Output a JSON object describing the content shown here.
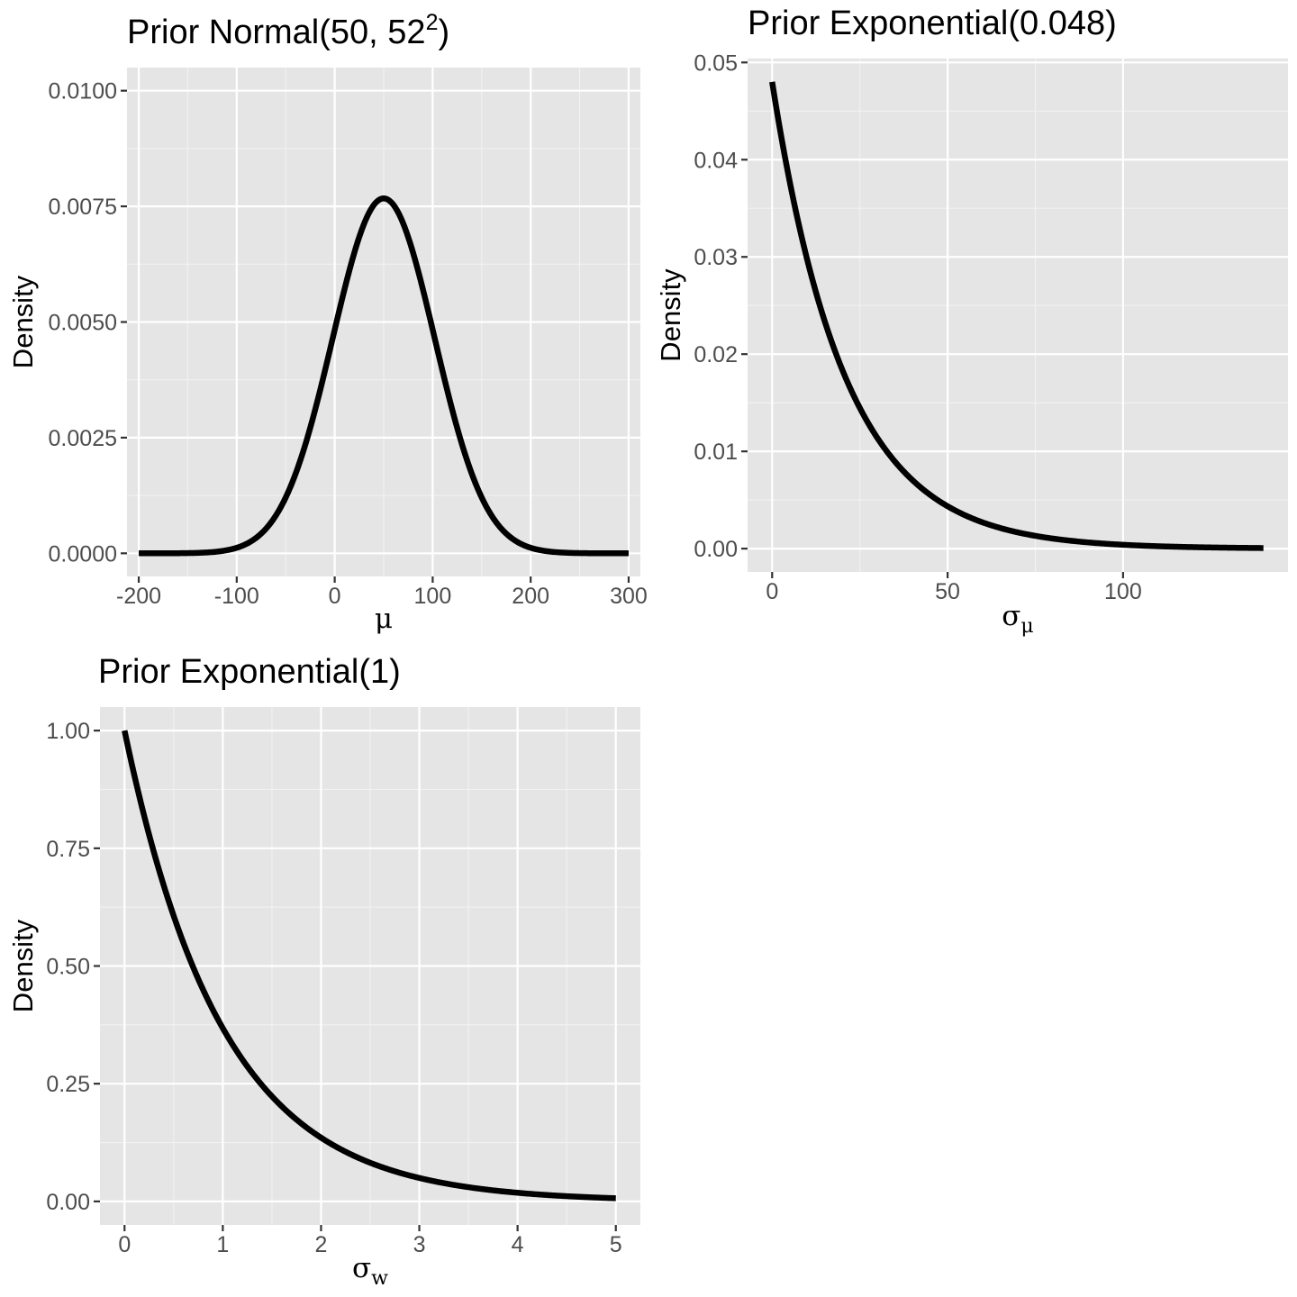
{
  "chart_data": [
    {
      "id": "p1",
      "type": "line",
      "distribution": "normal",
      "params": {
        "mean": 50,
        "sd": 52
      },
      "title": {
        "text": "Prior Normal(50, 52",
        "superscript": "2",
        "suffix": ")"
      },
      "xlabel": {
        "symbol": "μ",
        "subscript": ""
      },
      "ylabel": "Density",
      "xlim": [
        -212,
        312
      ],
      "ylim": [
        -0.0005,
        0.0105
      ],
      "xticks": [
        -200,
        -100,
        0,
        100,
        200,
        300
      ],
      "xtick_labels": [
        "-200",
        "-100",
        "0",
        "100",
        "200",
        "300"
      ],
      "yticks": [
        0,
        0.0025,
        0.005,
        0.0075,
        0.01
      ],
      "ytick_labels": [
        "0.0000",
        "0.0025",
        "0.0050",
        "0.0075",
        "0.0100"
      ],
      "x_range": [
        -200,
        300
      ],
      "series": [
        {
          "name": "Normal(50, 52^2) density",
          "x_from": -200,
          "x_to": 300,
          "peak": [
            50,
            0.00767
          ]
        }
      ],
      "grid": true
    },
    {
      "id": "p2",
      "type": "line",
      "distribution": "exponential",
      "params": {
        "rate": 0.048
      },
      "title": {
        "text": "Prior Exponential(0.048)",
        "superscript": "",
        "suffix": ""
      },
      "xlabel": {
        "symbol": "σ",
        "subscript": "μ"
      },
      "ylabel": "Density",
      "xlim": [
        -7,
        147
      ],
      "ylim": [
        -0.0024,
        0.0504
      ],
      "xticks": [
        0,
        50,
        100
      ],
      "xtick_labels": [
        "0",
        "50",
        "100"
      ],
      "yticks": [
        0,
        0.01,
        0.02,
        0.03,
        0.04,
        0.05
      ],
      "ytick_labels": [
        "0.00",
        "0.01",
        "0.02",
        "0.03",
        "0.04",
        "0.05"
      ],
      "x_range": [
        0,
        140
      ],
      "series": [
        {
          "name": "Exponential(0.048) density",
          "x_from": 0,
          "x_to": 140,
          "start": [
            0,
            0.048
          ],
          "end": [
            140,
            6e-05
          ]
        }
      ],
      "grid": true
    },
    {
      "id": "p3",
      "type": "line",
      "distribution": "exponential",
      "params": {
        "rate": 1
      },
      "title": {
        "text": "Prior Exponential(1)",
        "superscript": "",
        "suffix": ""
      },
      "xlabel": {
        "symbol": "σ",
        "subscript": "w"
      },
      "ylabel": "Density",
      "xlim": [
        -0.25,
        5.25
      ],
      "ylim": [
        -0.05,
        1.05
      ],
      "xticks": [
        0,
        1,
        2,
        3,
        4,
        5
      ],
      "xtick_labels": [
        "0",
        "1",
        "2",
        "3",
        "4",
        "5"
      ],
      "yticks": [
        0,
        0.25,
        0.5,
        0.75,
        1
      ],
      "ytick_labels": [
        "0.00",
        "0.25",
        "0.50",
        "0.75",
        "1.00"
      ],
      "x_range": [
        0,
        5
      ],
      "series": [
        {
          "name": "Exponential(1) density",
          "x_from": 0,
          "x_to": 5,
          "start": [
            0,
            1
          ],
          "end": [
            5,
            0.0067
          ]
        }
      ],
      "grid": true
    }
  ]
}
